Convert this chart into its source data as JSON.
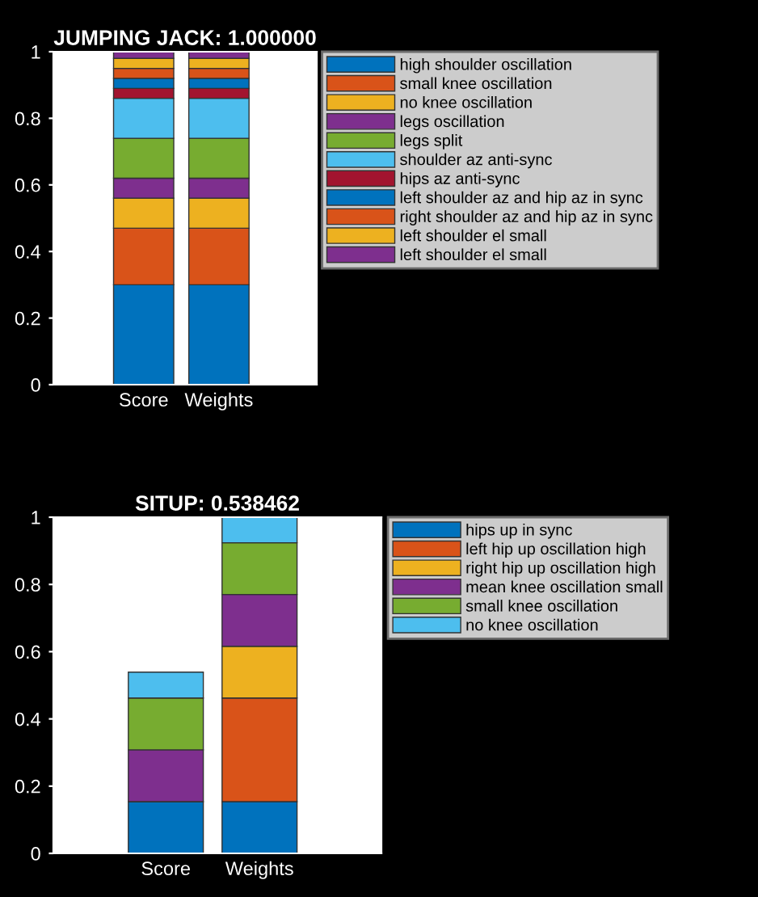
{
  "chart_data": [
    {
      "type": "bar",
      "title": "JUMPING JACK: 1.000000",
      "categories": [
        "Score",
        "Weights"
      ],
      "stacked": true,
      "ylim": [
        0,
        1
      ],
      "yticks": [
        0,
        0.2,
        0.4,
        0.6,
        0.8,
        1
      ],
      "legend": "right",
      "series": [
        {
          "name": "high shoulder oscillation",
          "color": "#0072bd",
          "values": [
            0.3,
            0.3
          ]
        },
        {
          "name": "small knee oscillation",
          "color": "#d95319",
          "values": [
            0.17,
            0.17
          ]
        },
        {
          "name": "no knee oscillation",
          "color": "#edb120",
          "values": [
            0.09,
            0.09
          ]
        },
        {
          "name": "legs oscillation",
          "color": "#7e2f8e",
          "values": [
            0.06,
            0.06
          ]
        },
        {
          "name": "legs split",
          "color": "#77ac30",
          "values": [
            0.12,
            0.12
          ]
        },
        {
          "name": "shoulder az anti-sync",
          "color": "#4dbeee",
          "values": [
            0.12,
            0.12
          ]
        },
        {
          "name": "hips az anti-sync",
          "color": "#a2142f",
          "values": [
            0.03,
            0.03
          ]
        },
        {
          "name": "left shoulder az and hip az in sync",
          "color": "#0072bd",
          "values": [
            0.03,
            0.03
          ]
        },
        {
          "name": "right shoulder az and hip az in sync",
          "color": "#d95319",
          "values": [
            0.03,
            0.03
          ]
        },
        {
          "name": "left shoulder el small",
          "color": "#edb120",
          "values": [
            0.03,
            0.03
          ]
        },
        {
          "name": "left shoulder el small",
          "color": "#7e2f8e",
          "values": [
            0.02,
            0.02
          ]
        }
      ]
    },
    {
      "type": "bar",
      "title": "SITUP: 0.538462",
      "categories": [
        "Score",
        "Weights"
      ],
      "stacked": true,
      "ylim": [
        0,
        1
      ],
      "yticks": [
        0,
        0.2,
        0.4,
        0.6,
        0.8,
        1
      ],
      "legend": "right",
      "series": [
        {
          "name": "hips up in sync",
          "color": "#0072bd",
          "values": [
            0.154,
            0.154
          ]
        },
        {
          "name": "left hip up oscillation high",
          "color": "#d95319",
          "values": [
            0,
            0.308
          ]
        },
        {
          "name": "right hip up oscillation high",
          "color": "#edb120",
          "values": [
            0,
            0.154
          ]
        },
        {
          "name": "mean knee oscillation small",
          "color": "#7e2f8e",
          "values": [
            0.154,
            0.154
          ]
        },
        {
          "name": "small knee oscillation",
          "color": "#77ac30",
          "values": [
            0.154,
            0.154
          ]
        },
        {
          "name": "no knee oscillation",
          "color": "#4dbeee",
          "values": [
            0.077,
            0.077
          ]
        }
      ]
    }
  ]
}
